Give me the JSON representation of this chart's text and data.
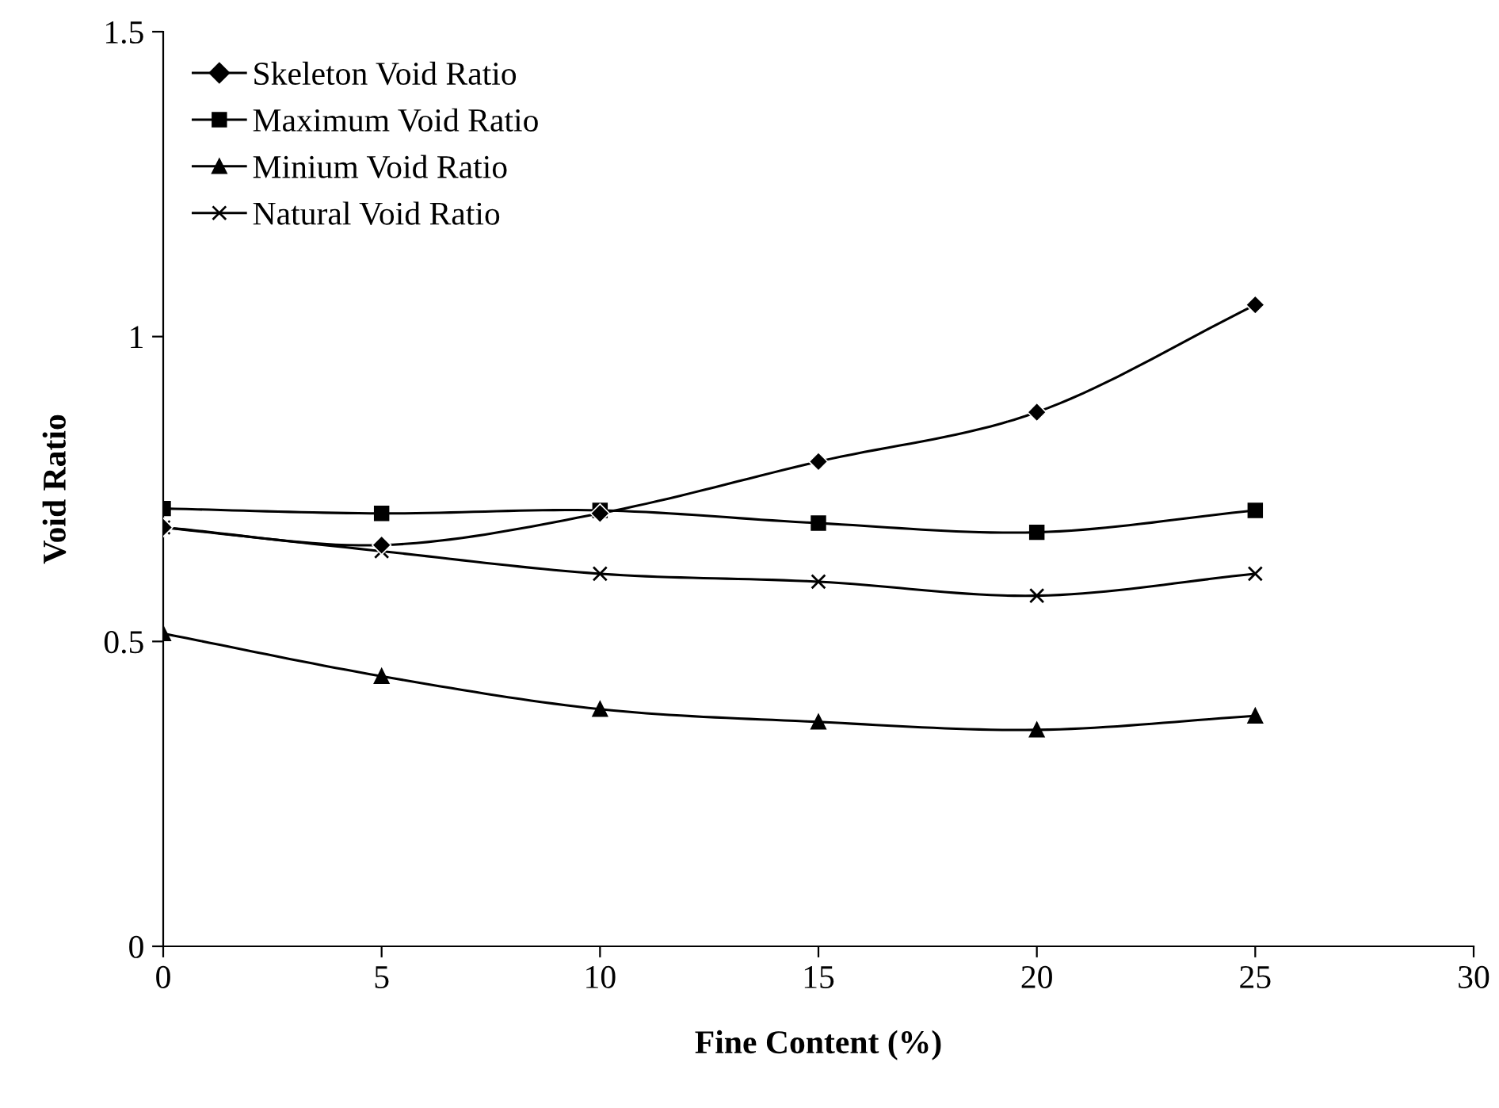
{
  "chart_data": {
    "type": "line",
    "xlabel": "Fine Content (%)",
    "ylabel": "Void Ratio",
    "x": [
      0,
      5,
      10,
      15,
      20,
      25
    ],
    "series": [
      {
        "name": "Skeleton Void Ratio",
        "color": "#000000",
        "marker": "diamond",
        "values": [
          0.687,
          0.658,
          0.71,
          0.795,
          0.876,
          1.052
        ]
      },
      {
        "name": "Maximum Void Ratio",
        "color": "#000000",
        "marker": "square",
        "values": [
          0.718,
          0.71,
          0.715,
          0.694,
          0.679,
          0.715
        ]
      },
      {
        "name": "Minium Void Ratio",
        "color": "#000000",
        "marker": "triangle",
        "values": [
          0.513,
          0.443,
          0.389,
          0.368,
          0.355,
          0.378
        ]
      },
      {
        "name": "Natural Void Ratio",
        "color": "#000000",
        "marker": "cross",
        "values": [
          0.687,
          0.648,
          0.611,
          0.598,
          0.575,
          0.611
        ]
      }
    ],
    "xlim": [
      0,
      30
    ],
    "xticks": [
      0,
      5,
      10,
      15,
      20,
      25,
      30
    ],
    "ylim": [
      0,
      1.5
    ],
    "yticks": [
      0,
      0.5,
      1,
      1.5
    ],
    "grid": false,
    "legend": "top left",
    "line_style": "solid"
  }
}
